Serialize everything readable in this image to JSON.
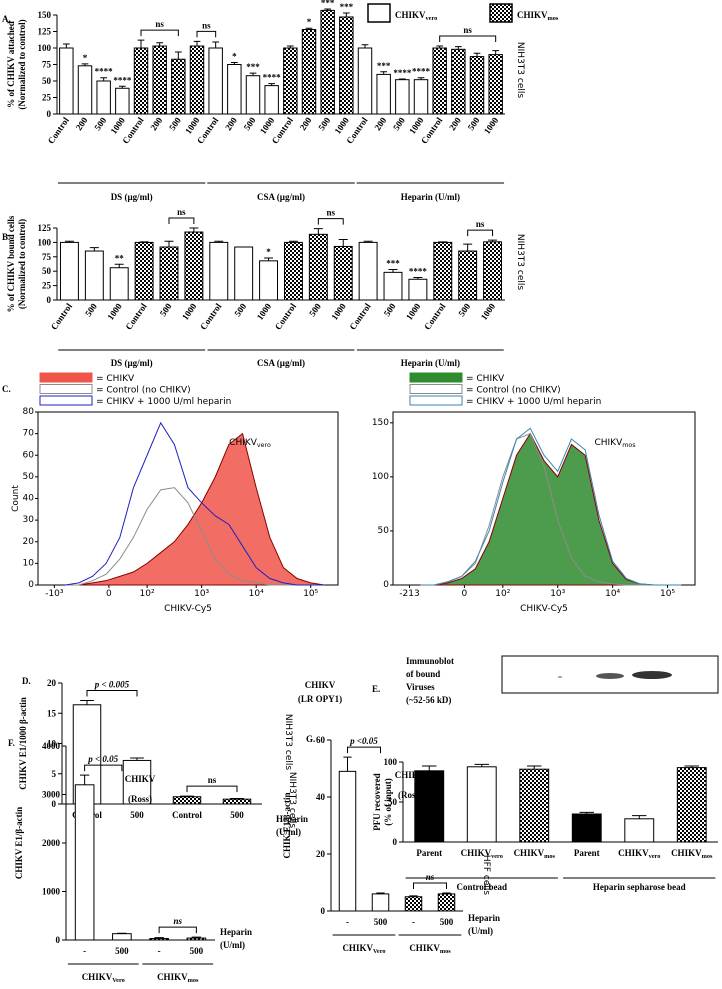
{
  "chart_data": [
    {
      "type": "bar",
      "panel": "A.",
      "ylabel": [
        "% of CHIKV attached",
        "(Normalized to control)"
      ],
      "side_label": "NIH3T3 cells",
      "categories": [
        "Control",
        "200",
        "500",
        "1000",
        "Control",
        "200",
        "500",
        "1000",
        "Control",
        "200",
        "500",
        "1000",
        "Control",
        "200",
        "500",
        "1000",
        "Control",
        "200",
        "500",
        "1000",
        "Control",
        "200",
        "500",
        "1000"
      ],
      "values": [
        100,
        73,
        50,
        39,
        100,
        103,
        83,
        103,
        100,
        75,
        58,
        43,
        100,
        128,
        157,
        147,
        100,
        60,
        52,
        52,
        100,
        98,
        87,
        90
      ],
      "errors": [
        6,
        3,
        5,
        3,
        12,
        5,
        11,
        7,
        9,
        3,
        4,
        3,
        3,
        2,
        2,
        6,
        5,
        4,
        1,
        3,
        3,
        4,
        5,
        6
      ],
      "fills": [
        "white",
        "white",
        "white",
        "white",
        "check",
        "check",
        "check",
        "check",
        "white",
        "white",
        "white",
        "white",
        "check",
        "check",
        "check",
        "check",
        "white",
        "white",
        "white",
        "white",
        "check",
        "check",
        "check",
        "check"
      ],
      "annotations": [
        {
          "index": 1,
          "text": "*"
        },
        {
          "index": 2,
          "text": "****"
        },
        {
          "index": 3,
          "text": "****"
        },
        {
          "index": 9,
          "text": "*"
        },
        {
          "index": 10,
          "text": "***"
        },
        {
          "index": 11,
          "text": "****"
        },
        {
          "index": 13,
          "text": "*"
        },
        {
          "index": 14,
          "text": "***"
        },
        {
          "index": 15,
          "text": "***"
        },
        {
          "index": 17,
          "text": "***"
        },
        {
          "index": 18,
          "text": "****"
        },
        {
          "index": 19,
          "text": "****"
        }
      ],
      "brackets": [
        {
          "from": 4,
          "to": 6,
          "text": "ns"
        },
        {
          "from": 7,
          "to": 8,
          "text": "ns"
        },
        {
          "from": 20,
          "to": 23,
          "text": "ns"
        }
      ],
      "groups": [
        {
          "text": "DS (µg/ml)",
          "from": 0,
          "to": 7
        },
        {
          "text": "CSA (µg/ml)",
          "from": 8,
          "to": 15
        },
        {
          "text": "Heparin (U/ml)",
          "from": 16,
          "to": 23
        }
      ],
      "legend": [
        {
          "text": "CHIKV",
          "sub": "vero",
          "fill": "white"
        },
        {
          "text": "CHIKV",
          "sub": "mos",
          "fill": "check"
        }
      ],
      "ylim": [
        0,
        150
      ],
      "yticks": [
        0,
        25,
        50,
        75,
        100,
        125,
        150
      ]
    },
    {
      "type": "bar",
      "panel": "B.",
      "ylabel": [
        "% of CHIKV bound cells",
        "(Normalized to control)"
      ],
      "side_label": "NIH3T3 cells",
      "categories": [
        "Control",
        "500",
        "1000",
        "Control",
        "500",
        "1000",
        "Control",
        "500",
        "1000",
        "Control",
        "500",
        "1000",
        "Control",
        "500",
        "1000",
        "Control",
        "500",
        "1000"
      ],
      "values": [
        100,
        85,
        56,
        100,
        92,
        118,
        100,
        92,
        68,
        100,
        114,
        93,
        100,
        48,
        36,
        100,
        85,
        101
      ],
      "errors": [
        2,
        6,
        6,
        1,
        10,
        7,
        2,
        0,
        5,
        2,
        10,
        12,
        2,
        5,
        3,
        1,
        12,
        3
      ],
      "fills": [
        "white",
        "white",
        "white",
        "check",
        "check",
        "check",
        "white",
        "white",
        "white",
        "check",
        "check",
        "check",
        "white",
        "white",
        "white",
        "check",
        "check",
        "check"
      ],
      "annotations": [
        {
          "index": 2,
          "text": "**"
        },
        {
          "index": 8,
          "text": "*"
        },
        {
          "index": 13,
          "text": "***"
        },
        {
          "index": 14,
          "text": "****"
        }
      ],
      "brackets": [
        {
          "from": 4,
          "to": 5,
          "text": "ns"
        },
        {
          "from": 10,
          "to": 11,
          "text": "ns"
        },
        {
          "from": 16,
          "to": 17,
          "text": "ns"
        }
      ],
      "groups": [
        {
          "text": "DS (µg/ml)",
          "from": 0,
          "to": 5
        },
        {
          "text": "CSA (µg/ml)",
          "from": 6,
          "to": 11
        },
        {
          "text": "Heparin (U/ml)",
          "from": 12,
          "to": 17
        }
      ],
      "ylim": [
        0,
        125
      ],
      "yticks": [
        0,
        25,
        50,
        75,
        100,
        125
      ]
    },
    {
      "type": "histogram",
      "panel": "C.",
      "xlabel": "CHIKV-Cy5",
      "ylabel": "Count",
      "annotation": {
        "text": "CHIKV",
        "sub": "vero"
      },
      "x": [
        0.5,
        0.75,
        1,
        1.25,
        1.5,
        1.75,
        2,
        2.25,
        2.5,
        2.75,
        3,
        3.25,
        3.5,
        3.75,
        4,
        4.25,
        4.5,
        4.75,
        5,
        5.25
      ],
      "series": [
        {
          "name": "= CHIKV",
          "color": "#f0554a",
          "filled": true,
          "values": [
            0,
            0,
            1,
            2,
            4,
            6,
            10,
            15,
            20,
            28,
            38,
            50,
            65,
            70,
            45,
            22,
            8,
            3,
            1,
            0
          ]
        },
        {
          "name": "= Control (no CHIKV)",
          "color": "#8c8c8c",
          "filled": false,
          "values": [
            0,
            0,
            2,
            5,
            12,
            22,
            35,
            44,
            45,
            38,
            25,
            12,
            5,
            2,
            1,
            0,
            0,
            0,
            0,
            0
          ]
        },
        {
          "name": "= CHIKV + 1000 U/ml heparin",
          "color": "#2020c0",
          "filled": false,
          "values": [
            0,
            1,
            4,
            10,
            22,
            45,
            60,
            75,
            65,
            45,
            38,
            32,
            28,
            18,
            8,
            3,
            1,
            0,
            0,
            0
          ]
        }
      ],
      "xlim": [
        0,
        5.5
      ],
      "xticks": [
        {
          "value": 0.3,
          "label": "-10³"
        },
        {
          "value": 1.3,
          "label": "0"
        },
        {
          "value": 2,
          "label": "10²"
        },
        {
          "value": 3,
          "label": "10³"
        },
        {
          "value": 4,
          "label": "10⁴"
        },
        {
          "value": 5,
          "label": "10⁵"
        }
      ],
      "ylim": [
        0,
        80
      ],
      "yticks": [
        0,
        10,
        20,
        30,
        40,
        50,
        60,
        70,
        80
      ]
    },
    {
      "type": "histogram",
      "xlabel": "CHIKV-Cy5",
      "annotation": {
        "text": "CHIKV",
        "sub": "mos"
      },
      "x": [
        0.5,
        0.75,
        1,
        1.25,
        1.5,
        1.75,
        2,
        2.25,
        2.5,
        2.75,
        3,
        3.25,
        3.5,
        3.75,
        4,
        4.25,
        4.5,
        4.75,
        5,
        5.25
      ],
      "series": [
        {
          "name": "= CHIKV",
          "color": "#2e8b2e",
          "filled": true,
          "values": [
            0,
            0,
            2,
            6,
            15,
            40,
            80,
            120,
            140,
            115,
            100,
            130,
            120,
            60,
            20,
            5,
            1,
            0,
            0,
            0
          ]
        },
        {
          "name": "= Control (no CHIKV)",
          "color": "#8c8c8c",
          "filled": false,
          "values": [
            0,
            0,
            3,
            8,
            20,
            55,
            100,
            135,
            140,
            110,
            60,
            25,
            8,
            3,
            1,
            0,
            0,
            0,
            0,
            0
          ]
        },
        {
          "name": "= CHIKV + 1000 U/ml heparin",
          "color": "#3a86b0",
          "filled": false,
          "values": [
            0,
            0,
            3,
            8,
            22,
            50,
            95,
            135,
            145,
            120,
            105,
            135,
            125,
            65,
            22,
            6,
            1,
            0,
            0,
            0
          ]
        }
      ],
      "xlim": [
        0,
        5.5
      ],
      "xticks": [
        {
          "value": 0.3,
          "label": "-213"
        },
        {
          "value": 1.3,
          "label": "0"
        },
        {
          "value": 2,
          "label": "10²"
        },
        {
          "value": 3,
          "label": "10³"
        },
        {
          "value": 4,
          "label": "10⁴"
        },
        {
          "value": 5,
          "label": "10⁵"
        }
      ],
      "ylim": [
        0,
        160
      ],
      "yticks": [
        0,
        50,
        100,
        150
      ]
    },
    {
      "type": "bar",
      "panel": "D.",
      "ylabel": [
        "CHIKV E1/1000 β-actin"
      ],
      "side_label": "NIH3T3 cells",
      "title": [
        "CHIKV",
        "(LR OPY1)"
      ],
      "note": [
        "Heparin",
        "(U/ml)"
      ],
      "categories": [
        "Control",
        "500",
        "Control",
        "500"
      ],
      "values": [
        16.4,
        7.2,
        1.2,
        0.8
      ],
      "errors": [
        0.7,
        0.4,
        0.1,
        0.1
      ],
      "fills": [
        "white",
        "white",
        "check",
        "check"
      ],
      "brackets": [
        {
          "from": 0,
          "to": 1,
          "text": "p < 0.005"
        },
        {
          "from": 2,
          "to": 3,
          "text": "ns"
        }
      ],
      "ylim": [
        0,
        20
      ],
      "yticks": [
        0,
        5,
        10,
        15,
        20
      ]
    },
    {
      "type": "bar",
      "panel": "E.",
      "ylabel": [
        "PFU recovered",
        "(% of input)"
      ],
      "blot_label": [
        "Immunoblot",
        "of bound",
        "Viruses",
        "(~52-56 kD)"
      ],
      "categories": [
        "Parent",
        {
          "text": "CHIKV",
          "sub": "vero"
        },
        {
          "text": "CHIKV",
          "sub": "mos"
        },
        "Parent",
        {
          "text": "CHIKV",
          "sub": "vero"
        },
        {
          "text": "CHIKV",
          "sub": "mos"
        }
      ],
      "values": [
        89,
        94,
        91,
        35,
        29,
        93
      ],
      "errors": [
        6,
        3,
        4,
        2,
        4,
        2
      ],
      "fills": [
        "black",
        "white",
        "check",
        "black",
        "white",
        "check"
      ],
      "groups": [
        {
          "text": "Control bead",
          "from": 0,
          "to": 2
        },
        {
          "text": "Heparin sepharose bead",
          "from": 3,
          "to": 5
        }
      ],
      "ylim": [
        0,
        100
      ],
      "yticks": [
        0,
        50,
        100
      ]
    },
    {
      "type": "bar",
      "panel": "F.",
      "ylabel": [
        "CHIKV E1/β-actin"
      ],
      "side_label": "NIH3T3 cells",
      "title": [
        "CHIKV",
        "(Ross)"
      ],
      "note": [
        "Heparin",
        "(U/ml)"
      ],
      "categories": [
        "-",
        "500",
        "-",
        "500"
      ],
      "values": [
        3200,
        130,
        30,
        40
      ],
      "errors": [
        200,
        10,
        20,
        20
      ],
      "fills": [
        "white",
        "white",
        "check",
        "check"
      ],
      "brackets": [
        {
          "from": 0,
          "to": 1,
          "text": "p < 0.05"
        },
        {
          "from": 2,
          "to": 3,
          "text": "ns"
        }
      ],
      "groups": [
        {
          "text": "CHIKV",
          "sub": "Vero",
          "from": 0,
          "to": 1
        },
        {
          "text": "CHIKV",
          "sub": "mos",
          "from": 2,
          "to": 3
        }
      ],
      "ylim": [
        0,
        4000
      ],
      "yticks": [
        0,
        1000,
        2000,
        3000,
        4000
      ]
    },
    {
      "type": "bar",
      "panel": "G.",
      "ylabel": [
        "CHIK E1/β-actin"
      ],
      "side_label": "HFF cells",
      "title": [
        "CHIKV",
        "(Ross)"
      ],
      "note": [
        "Heparin",
        "(U/ml)"
      ],
      "categories": [
        "-",
        "500",
        "-",
        "500"
      ],
      "values": [
        49,
        6,
        5,
        6
      ],
      "errors": [
        5,
        0.3,
        0.3,
        0.3
      ],
      "fills": [
        "white",
        "white",
        "check",
        "check"
      ],
      "brackets": [
        {
          "from": 0,
          "to": 1,
          "text": "p <0.05"
        },
        {
          "from": 2,
          "to": 3,
          "text": "ns"
        }
      ],
      "groups": [
        {
          "text": "CHIKV",
          "sub": "Vero",
          "from": 0,
          "to": 1
        },
        {
          "text": "CHIKV",
          "sub": "mos",
          "from": 2,
          "to": 3
        }
      ],
      "ylim": [
        0,
        60
      ],
      "yticks": [
        0,
        20,
        40,
        60
      ]
    }
  ]
}
